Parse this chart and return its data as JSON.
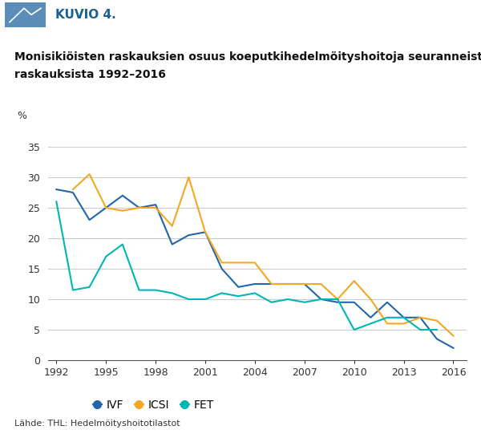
{
  "title_line1": "Monisikiöisten raskauksien osuus koeputkihedelmöityshoitoja seuranneista",
  "title_line2": "raskauksista 1992–2016",
  "header": "KUVIO 4.",
  "ylabel": "%",
  "source_text": "Lähde: THL: Hedelmöityshoitotilastot",
  "ylim": [
    0,
    37
  ],
  "yticks": [
    0,
    5,
    10,
    15,
    20,
    25,
    30,
    35
  ],
  "xtick_positions": [
    1992,
    1995,
    1998,
    2001,
    2004,
    2007,
    2010,
    2013,
    2016
  ],
  "IVF_years": [
    1992,
    1993,
    1994,
    1995,
    1996,
    1997,
    1998,
    1999,
    2000,
    2001,
    2002,
    2003,
    2004,
    2005,
    2006,
    2007,
    2008,
    2009,
    2010,
    2011,
    2012,
    2013,
    2014,
    2015,
    2016
  ],
  "IVF_values": [
    28,
    27.5,
    23,
    25,
    27,
    25,
    25.5,
    19,
    20.5,
    21,
    15,
    12,
    12.5,
    12.5,
    12.5,
    12.5,
    10,
    9.5,
    9.5,
    7,
    9.5,
    7,
    7,
    3.5,
    2
  ],
  "ICSI_years": [
    1993,
    1994,
    1995,
    1996,
    1997,
    1998,
    1999,
    2000,
    2001,
    2002,
    2003,
    2004,
    2005,
    2006,
    2007,
    2008,
    2009,
    2010,
    2011,
    2012,
    2013,
    2014,
    2015,
    2016
  ],
  "ICSI_values": [
    28,
    30.5,
    25,
    24.5,
    25,
    25,
    22,
    30,
    21,
    16,
    16,
    16,
    12.5,
    12.5,
    12.5,
    12.5,
    10,
    13,
    10,
    6,
    6,
    7,
    6.5,
    4
  ],
  "FET_years": [
    1992,
    1993,
    1994,
    1995,
    1996,
    1997,
    1998,
    1999,
    2000,
    2001,
    2002,
    2003,
    2004,
    2005,
    2006,
    2007,
    2008,
    2009,
    2010,
    2011,
    2012,
    2013,
    2014,
    2015
  ],
  "FET_values": [
    26,
    11.5,
    12,
    17,
    19,
    11.5,
    11.5,
    11,
    10,
    10,
    11,
    10.5,
    11,
    9.5,
    10,
    9.5,
    10,
    10,
    5,
    6,
    7,
    7,
    5,
    5
  ],
  "IVF_color": "#2166ac",
  "ICSI_color": "#f5a623",
  "FET_color": "#00b5b5",
  "background_color": "#ffffff",
  "grid_color": "#cccccc",
  "header_bg": "#dce8f0",
  "header_text_color": "#1a6090",
  "icon_color": "#5b8db8",
  "legend_labels": [
    "IVF",
    "ICSI",
    "FET"
  ]
}
